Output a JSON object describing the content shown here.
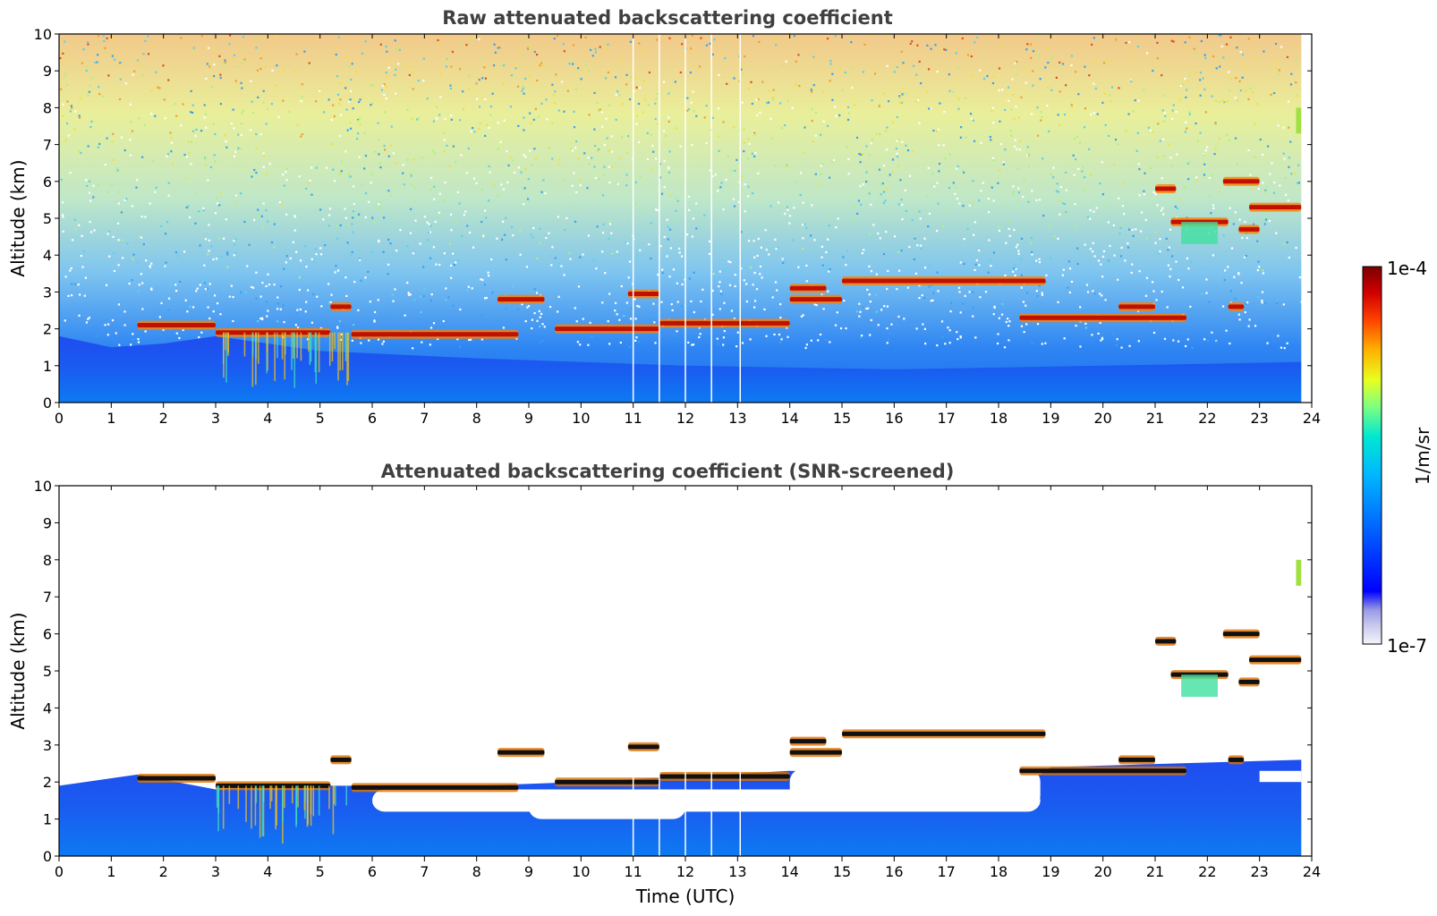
{
  "chart_data": [
    {
      "type": "heatmap",
      "title": "Raw attenuated backscattering coefficient",
      "xlabel": "",
      "ylabel": "Altitude (km)",
      "xlim": [
        0,
        24
      ],
      "ylim": [
        0,
        10
      ],
      "xticks": [
        "0",
        "1",
        "2",
        "3",
        "4",
        "5",
        "6",
        "7",
        "8",
        "9",
        "10",
        "11",
        "12",
        "13",
        "14",
        "15",
        "16",
        "17",
        "18",
        "19",
        "20",
        "21",
        "22",
        "23",
        "24"
      ],
      "yticks": [
        "0",
        "1",
        "2",
        "3",
        "4",
        "5",
        "6",
        "7",
        "8",
        "9",
        "10"
      ],
      "grid": false,
      "data_end_time": 23.8,
      "boundary_layer_top_km": [
        [
          0,
          1.8
        ],
        [
          1,
          1.5
        ],
        [
          2,
          1.6
        ],
        [
          3,
          1.8
        ],
        [
          5,
          1.4
        ],
        [
          8,
          1.2
        ],
        [
          12,
          1.0
        ],
        [
          16,
          0.9
        ],
        [
          20,
          1.0
        ],
        [
          23.8,
          1.1
        ]
      ],
      "cloud_layers": [
        {
          "t_start": 1.5,
          "t_end": 3.0,
          "altitude_km": 2.1
        },
        {
          "t_start": 3.0,
          "t_end": 5.2,
          "altitude_km": 1.9
        },
        {
          "t_start": 5.2,
          "t_end": 5.6,
          "altitude_km": 2.6
        },
        {
          "t_start": 5.6,
          "t_end": 8.8,
          "altitude_km": 1.85
        },
        {
          "t_start": 8.4,
          "t_end": 9.3,
          "altitude_km": 2.8
        },
        {
          "t_start": 9.5,
          "t_end": 11.5,
          "altitude_km": 2.0
        },
        {
          "t_start": 10.9,
          "t_end": 11.5,
          "altitude_km": 2.95
        },
        {
          "t_start": 11.5,
          "t_end": 14.0,
          "altitude_km": 2.15
        },
        {
          "t_start": 14.0,
          "t_end": 15.0,
          "altitude_km": 2.8
        },
        {
          "t_start": 14.0,
          "t_end": 14.7,
          "altitude_km": 3.1
        },
        {
          "t_start": 15.0,
          "t_end": 18.9,
          "altitude_km": 3.3
        },
        {
          "t_start": 18.4,
          "t_end": 21.6,
          "altitude_km": 2.3
        },
        {
          "t_start": 20.3,
          "t_end": 21.0,
          "altitude_km": 2.6
        },
        {
          "t_start": 21.0,
          "t_end": 21.4,
          "altitude_km": 5.8
        },
        {
          "t_start": 21.3,
          "t_end": 22.4,
          "altitude_km": 4.9
        },
        {
          "t_start": 22.3,
          "t_end": 23.0,
          "altitude_km": 6.0
        },
        {
          "t_start": 22.6,
          "t_end": 23.0,
          "altitude_km": 4.7
        },
        {
          "t_start": 22.8,
          "t_end": 23.8,
          "altitude_km": 5.3
        },
        {
          "t_start": 22.4,
          "t_end": 22.7,
          "altitude_km": 2.6
        }
      ],
      "gaps_utc": [
        11.0,
        11.5,
        12.0,
        12.5,
        13.05
      ]
    },
    {
      "type": "heatmap",
      "title": "Attenuated backscattering coefficient (SNR-screened)",
      "xlabel": "Time (UTC)",
      "ylabel": "Altitude (km)",
      "xlim": [
        0,
        24
      ],
      "ylim": [
        0,
        10
      ],
      "xticks": [
        "0",
        "1",
        "2",
        "3",
        "4",
        "5",
        "6",
        "7",
        "8",
        "9",
        "10",
        "11",
        "12",
        "13",
        "14",
        "15",
        "16",
        "17",
        "18",
        "19",
        "20",
        "21",
        "22",
        "23",
        "24"
      ],
      "yticks": [
        "0",
        "1",
        "2",
        "3",
        "4",
        "5",
        "6",
        "7",
        "8",
        "9",
        "10"
      ],
      "grid": false,
      "screened_top_km": 2.6,
      "gaps_utc": [
        11.0,
        11.5,
        12.0,
        12.5,
        13.05
      ]
    }
  ],
  "colorbar": {
    "label": "1/m/sr",
    "max_label": "1e-4",
    "min_label": "1e-7",
    "colors": [
      "#f4f4fb",
      "#c8c8ee",
      "#9a9ae6",
      "#0000ff",
      "#0060ff",
      "#00b8ff",
      "#00e8d0",
      "#80ff80",
      "#e8ff20",
      "#ffb000",
      "#ff4000",
      "#d00000",
      "#7a0000"
    ]
  }
}
